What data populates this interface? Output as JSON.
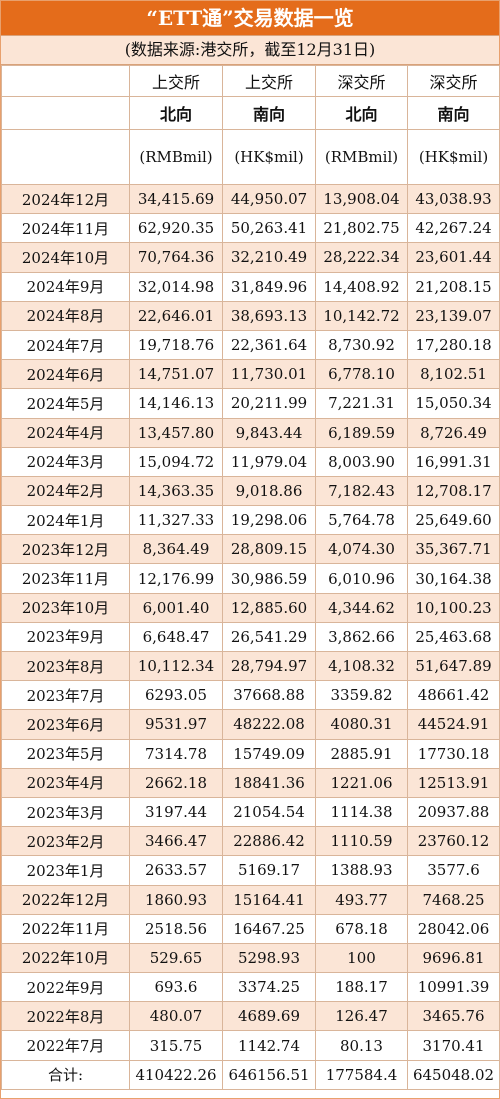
{
  "title": "“ETT通”交易数据一览",
  "subtitle": "(数据来源:港交所，截至12月31日)",
  "headers": {
    "exchange": [
      "上交所",
      "上交所",
      "深交所",
      "深交所"
    ],
    "direction": [
      "北向",
      "南向",
      "北向",
      "南向"
    ],
    "unit": [
      "(RMBmil)",
      "(HK$mil)",
      "(RMBmil)",
      "(HK$mil)"
    ]
  },
  "rows": [
    {
      "month": "2024年12月",
      "values": [
        "34,415.69",
        "44,950.07",
        "13,908.04",
        "43,038.93"
      ]
    },
    {
      "month": "2024年11月",
      "values": [
        "62,920.35",
        "50,263.41",
        "21,802.75",
        "42,267.24"
      ]
    },
    {
      "month": "2024年10月",
      "values": [
        "70,764.36",
        "32,210.49",
        "28,222.34",
        "23,601.44"
      ]
    },
    {
      "month": "2024年9月",
      "values": [
        "32,014.98",
        "31,849.96",
        "14,408.92",
        "21,208.15"
      ]
    },
    {
      "month": "2024年8月",
      "values": [
        "22,646.01",
        "38,693.13",
        "10,142.72",
        "23,139.07"
      ]
    },
    {
      "month": "2024年7月",
      "values": [
        "19,718.76",
        "22,361.64",
        "8,730.92",
        "17,280.18"
      ]
    },
    {
      "month": "2024年6月",
      "values": [
        "14,751.07",
        "11,730.01",
        "6,778.10",
        "8,102.51"
      ]
    },
    {
      "month": "2024年5月",
      "values": [
        "14,146.13",
        "20,211.99",
        "7,221.31",
        "15,050.34"
      ]
    },
    {
      "month": "2024年4月",
      "values": [
        "13,457.80",
        "9,843.44",
        "6,189.59",
        "8,726.49"
      ]
    },
    {
      "month": "2024年3月",
      "values": [
        "15,094.72",
        "11,979.04",
        "8,003.90",
        "16,991.31"
      ]
    },
    {
      "month": "2024年2月",
      "values": [
        "14,363.35",
        "9,018.86",
        "7,182.43",
        "12,708.17"
      ]
    },
    {
      "month": "2024年1月",
      "values": [
        "11,327.33",
        "19,298.06",
        "5,764.78",
        "25,649.60"
      ]
    },
    {
      "month": "2023年12月",
      "values": [
        "8,364.49",
        "28,809.15",
        "4,074.30",
        "35,367.71"
      ]
    },
    {
      "month": "2023年11月",
      "values": [
        "12,176.99",
        "30,986.59",
        "6,010.96",
        "30,164.38"
      ]
    },
    {
      "month": "2023年10月",
      "values": [
        "6,001.40",
        "12,885.60",
        "4,344.62",
        "10,100.23"
      ]
    },
    {
      "month": "2023年9月",
      "values": [
        "6,648.47",
        "26,541.29",
        "3,862.66",
        "25,463.68"
      ]
    },
    {
      "month": "2023年8月",
      "values": [
        "10,112.34",
        "28,794.97",
        "4,108.32",
        "51,647.89"
      ]
    },
    {
      "month": "2023年7月",
      "values": [
        "6293.05",
        "37668.88",
        "3359.82",
        "48661.42"
      ]
    },
    {
      "month": "2023年6月",
      "values": [
        "9531.97",
        "48222.08",
        "4080.31",
        "44524.91"
      ]
    },
    {
      "month": "2023年5月",
      "values": [
        "7314.78",
        "15749.09",
        "2885.91",
        "17730.18"
      ]
    },
    {
      "month": "2023年4月",
      "values": [
        "2662.18",
        "18841.36",
        "1221.06",
        "12513.91"
      ]
    },
    {
      "month": "2023年3月",
      "values": [
        "3197.44",
        "21054.54",
        "1114.38",
        "20937.88"
      ]
    },
    {
      "month": "2023年2月",
      "values": [
        "3466.47",
        "22886.42",
        "1110.59",
        "23760.12"
      ]
    },
    {
      "month": "2023年1月",
      "values": [
        "2633.57",
        "5169.17",
        "1388.93",
        "3577.6"
      ]
    },
    {
      "month": "2022年12月",
      "values": [
        "1860.93",
        "15164.41",
        "493.77",
        "7468.25"
      ]
    },
    {
      "month": "2022年11月",
      "values": [
        "2518.56",
        "16467.25",
        "678.18",
        "28042.06"
      ]
    },
    {
      "month": "2022年10月",
      "values": [
        "529.65",
        "5298.93",
        "100",
        "9696.81"
      ]
    },
    {
      "month": "2022年9月",
      "values": [
        "693.6",
        "3374.25",
        "188.17",
        "10991.39"
      ]
    },
    {
      "month": "2022年8月",
      "values": [
        "480.07",
        "4689.69",
        "126.47",
        "3465.76"
      ]
    },
    {
      "month": "2022年7月",
      "values": [
        "315.75",
        "1142.74",
        "80.13",
        "3170.41"
      ]
    }
  ],
  "total": {
    "label": "合计:",
    "values": [
      "410422.26",
      "646156.51",
      "177584.4",
      "645048.02"
    ]
  }
}
